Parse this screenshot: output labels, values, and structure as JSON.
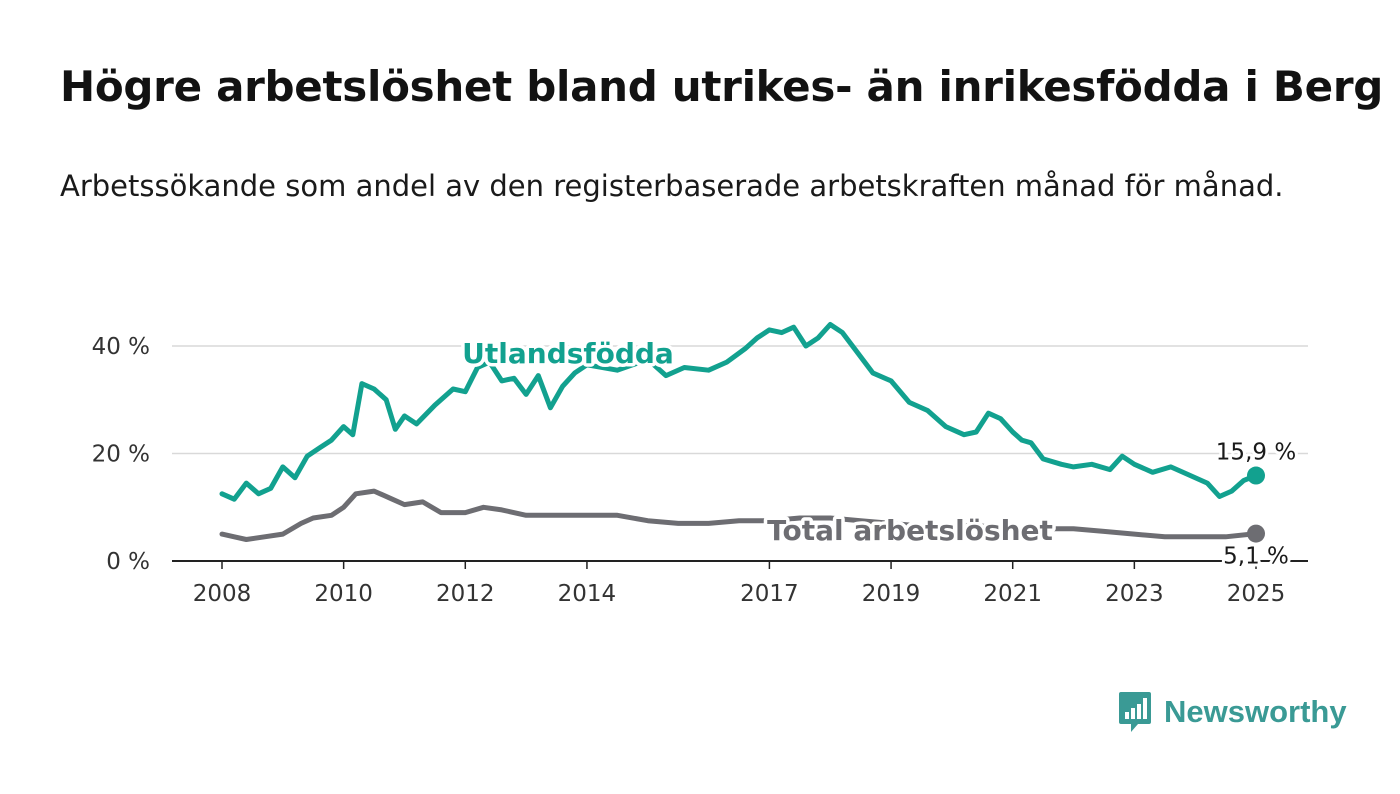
{
  "title": "Högre arbetslöshet bland utrikes- än inrikesfödda i Berg",
  "subtitle": "Arbetssökande som andel av den registerbaserade arbetskraften månad för månad.",
  "brand": {
    "name": "Newsworthy",
    "icon": "newsworthy-logo-icon",
    "color": "#3a9a95"
  },
  "chart_data": {
    "type": "line",
    "x_unit": "year",
    "ylim": [
      0,
      45
    ],
    "y_ticks": [
      0,
      20,
      40
    ],
    "y_tick_labels": [
      "0 %",
      "20 %",
      "40 %"
    ],
    "x_ticks": [
      2008,
      2010,
      2012,
      2014,
      2017,
      2019,
      2021,
      2023,
      2025
    ],
    "x_tick_labels": [
      "2008",
      "2010",
      "2012",
      "2014",
      "2017",
      "2019",
      "2021",
      "2023",
      "2025"
    ],
    "grid": true,
    "legend": "inline labels",
    "series": [
      {
        "name": "Utlandsfödda",
        "color": "#12a18f",
        "end_label": "15,9 %",
        "points": [
          [
            2008.0,
            12.5
          ],
          [
            2008.2,
            11.5
          ],
          [
            2008.4,
            14.5
          ],
          [
            2008.6,
            12.5
          ],
          [
            2008.8,
            13.5
          ],
          [
            2009.0,
            17.5
          ],
          [
            2009.2,
            15.5
          ],
          [
            2009.4,
            19.5
          ],
          [
            2009.6,
            21.0
          ],
          [
            2009.8,
            22.5
          ],
          [
            2010.0,
            25.0
          ],
          [
            2010.15,
            23.5
          ],
          [
            2010.3,
            33.0
          ],
          [
            2010.5,
            32.0
          ],
          [
            2010.7,
            30.0
          ],
          [
            2010.85,
            24.5
          ],
          [
            2011.0,
            27.0
          ],
          [
            2011.2,
            25.5
          ],
          [
            2011.5,
            29.0
          ],
          [
            2011.8,
            32.0
          ],
          [
            2012.0,
            31.5
          ],
          [
            2012.2,
            36.0
          ],
          [
            2012.4,
            37.0
          ],
          [
            2012.6,
            33.5
          ],
          [
            2012.8,
            34.0
          ],
          [
            2013.0,
            31.0
          ],
          [
            2013.2,
            34.5
          ],
          [
            2013.4,
            28.5
          ],
          [
            2013.6,
            32.5
          ],
          [
            2013.8,
            35.0
          ],
          [
            2014.0,
            36.5
          ],
          [
            2014.5,
            35.5
          ],
          [
            2015.0,
            37.5
          ],
          [
            2015.3,
            34.5
          ],
          [
            2015.6,
            36.0
          ],
          [
            2016.0,
            35.5
          ],
          [
            2016.3,
            37.0
          ],
          [
            2016.6,
            39.5
          ],
          [
            2016.8,
            41.5
          ],
          [
            2017.0,
            43.0
          ],
          [
            2017.2,
            42.5
          ],
          [
            2017.4,
            43.5
          ],
          [
            2017.6,
            40.0
          ],
          [
            2017.8,
            41.5
          ],
          [
            2018.0,
            44.0
          ],
          [
            2018.2,
            42.5
          ],
          [
            2018.4,
            39.5
          ],
          [
            2018.7,
            35.0
          ],
          [
            2019.0,
            33.5
          ],
          [
            2019.3,
            29.5
          ],
          [
            2019.6,
            28.0
          ],
          [
            2019.9,
            25.0
          ],
          [
            2020.2,
            23.5
          ],
          [
            2020.4,
            24.0
          ],
          [
            2020.6,
            27.5
          ],
          [
            2020.8,
            26.5
          ],
          [
            2021.0,
            24.0
          ],
          [
            2021.15,
            22.5
          ],
          [
            2021.3,
            22.0
          ],
          [
            2021.5,
            19.0
          ],
          [
            2021.8,
            18.0
          ],
          [
            2022.0,
            17.5
          ],
          [
            2022.3,
            18.0
          ],
          [
            2022.6,
            17.0
          ],
          [
            2022.8,
            19.5
          ],
          [
            2023.0,
            18.0
          ],
          [
            2023.3,
            16.5
          ],
          [
            2023.6,
            17.5
          ],
          [
            2023.9,
            16.0
          ],
          [
            2024.2,
            14.5
          ],
          [
            2024.4,
            12.0
          ],
          [
            2024.6,
            13.0
          ],
          [
            2024.8,
            15.0
          ],
          [
            2025.0,
            15.9
          ]
        ]
      },
      {
        "name": "Total arbetslöshet",
        "color": "#6d6d72",
        "end_label": "5,1 %",
        "points": [
          [
            2008.0,
            5.0
          ],
          [
            2008.2,
            4.5
          ],
          [
            2008.4,
            4.0
          ],
          [
            2008.7,
            4.5
          ],
          [
            2009.0,
            5.0
          ],
          [
            2009.3,
            7.0
          ],
          [
            2009.5,
            8.0
          ],
          [
            2009.8,
            8.5
          ],
          [
            2010.0,
            10.0
          ],
          [
            2010.2,
            12.5
          ],
          [
            2010.5,
            13.0
          ],
          [
            2010.8,
            11.5
          ],
          [
            2011.0,
            10.5
          ],
          [
            2011.3,
            11.0
          ],
          [
            2011.6,
            9.0
          ],
          [
            2012.0,
            9.0
          ],
          [
            2012.3,
            10.0
          ],
          [
            2012.6,
            9.5
          ],
          [
            2013.0,
            8.5
          ],
          [
            2013.5,
            8.5
          ],
          [
            2014.0,
            8.5
          ],
          [
            2014.5,
            8.5
          ],
          [
            2015.0,
            7.5
          ],
          [
            2015.5,
            7.0
          ],
          [
            2016.0,
            7.0
          ],
          [
            2016.5,
            7.5
          ],
          [
            2017.0,
            7.5
          ],
          [
            2017.5,
            8.0
          ],
          [
            2018.0,
            8.0
          ],
          [
            2018.5,
            7.5
          ],
          [
            2019.0,
            7.0
          ],
          [
            2019.5,
            6.5
          ],
          [
            2020.0,
            6.5
          ],
          [
            2020.5,
            6.5
          ],
          [
            2021.0,
            6.0
          ],
          [
            2021.5,
            6.0
          ],
          [
            2022.0,
            6.0
          ],
          [
            2022.5,
            5.5
          ],
          [
            2023.0,
            5.0
          ],
          [
            2023.5,
            4.5
          ],
          [
            2024.0,
            4.5
          ],
          [
            2024.5,
            4.5
          ],
          [
            2025.0,
            5.1
          ]
        ]
      }
    ]
  }
}
